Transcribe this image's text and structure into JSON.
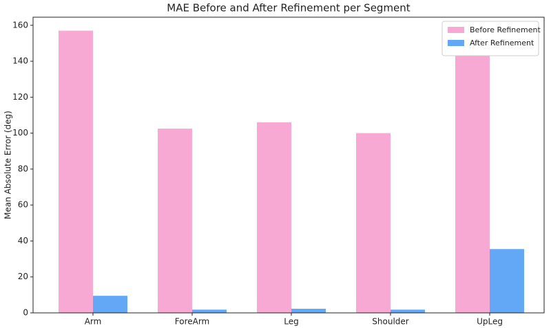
{
  "chart_data": {
    "type": "bar",
    "title": "MAE Before and After Refinement per Segment",
    "ylabel": "Mean Absolute Error (deg)",
    "categories": [
      "Arm",
      "ForeArm",
      "Leg",
      "Shoulder",
      "UpLeg"
    ],
    "series": [
      {
        "name": "Before Refinement",
        "color": "#f7a8d3",
        "values": [
          157,
          102.5,
          106,
          100,
          147
        ]
      },
      {
        "name": "After Refinement",
        "color": "#63a8f7",
        "values": [
          9.5,
          1.8,
          2.3,
          1.8,
          35.5
        ]
      }
    ],
    "ylim": [
      0,
      164.5
    ],
    "yticks": [
      0,
      20,
      40,
      60,
      80,
      100,
      120,
      140,
      160
    ],
    "legend": "upper right"
  }
}
